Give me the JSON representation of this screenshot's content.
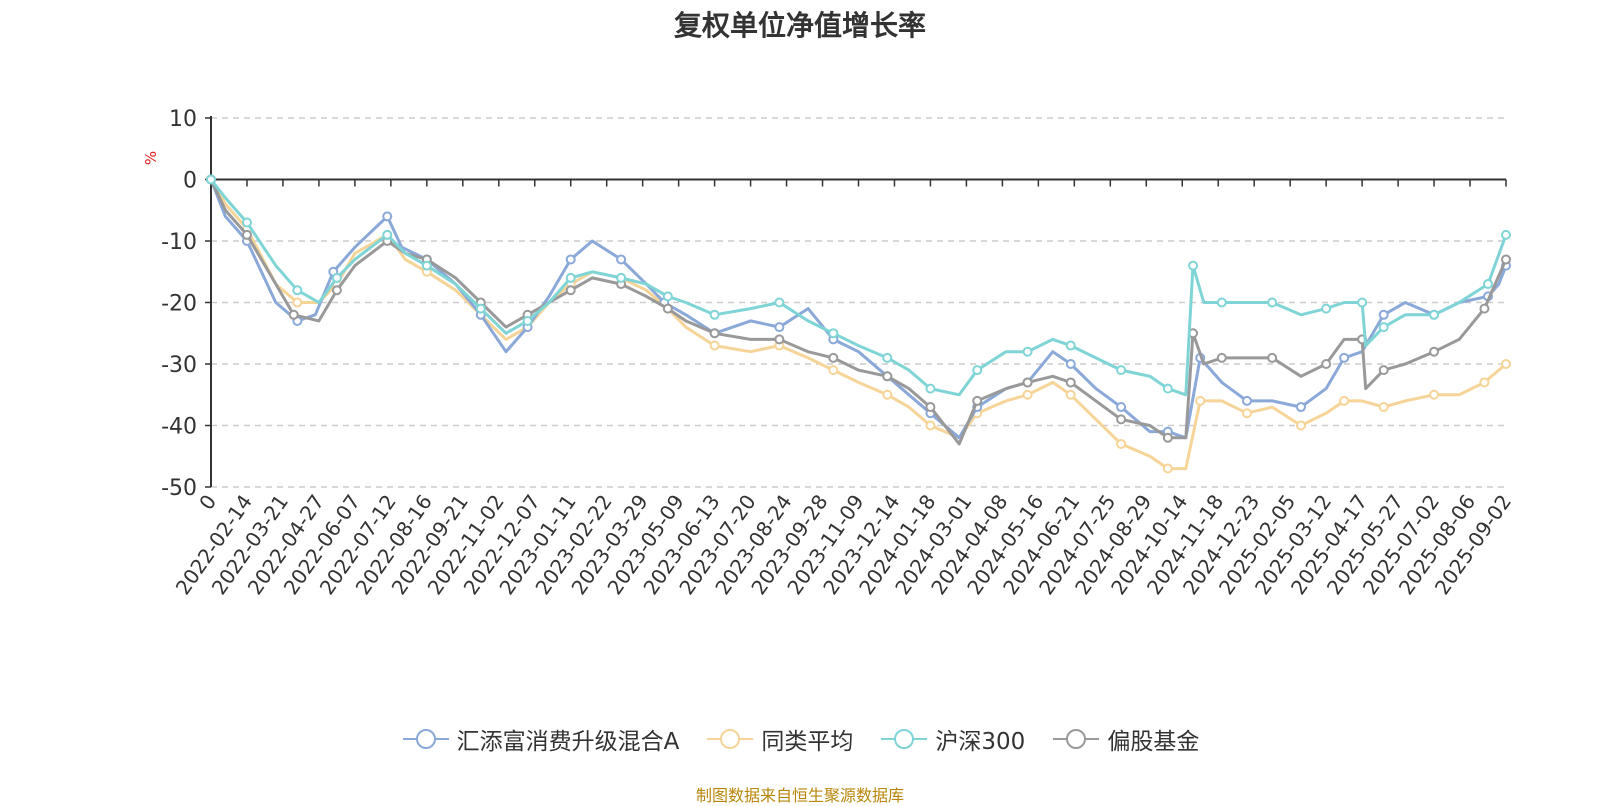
{
  "page": {
    "title": "复权单位净值增长率",
    "source_note": "制图数据来自恒生聚源数据库",
    "source_color": "#b8860b"
  },
  "chart_data": {
    "type": "line",
    "title": "复权单位净值增长率",
    "ylabel": "%",
    "ylim": [
      -50,
      10
    ],
    "yticks": [
      10,
      0,
      -10,
      -20,
      -30,
      -40,
      -50
    ],
    "grid": true,
    "legend_position": "bottom",
    "x_tick_labels": [
      "0",
      "2022-02-14",
      "2022-03-21",
      "2022-04-27",
      "2022-06-07",
      "2022-07-12",
      "2022-08-16",
      "2022-09-21",
      "2022-11-02",
      "2022-12-07",
      "2023-01-11",
      "2023-02-22",
      "2023-03-29",
      "2023-05-09",
      "2023-06-13",
      "2023-07-20",
      "2023-08-24",
      "2023-09-28",
      "2023-11-09",
      "2023-12-14",
      "2024-01-18",
      "2024-03-01",
      "2024-04-08",
      "2024-05-16",
      "2024-06-21",
      "2024-07-25",
      "2024-08-29",
      "2024-10-14",
      "2024-11-18",
      "2024-12-23",
      "2025-02-05",
      "2025-03-12",
      "2025-04-17",
      "2025-05-27",
      "2025-07-02",
      "2025-08-06",
      "2025-09-02"
    ],
    "series": [
      {
        "name": "汇添富消费升级混合A",
        "color": "#8aa8d8",
        "points": [
          [
            0,
            0
          ],
          [
            0.4,
            -6
          ],
          [
            1,
            -10
          ],
          [
            1.8,
            -20
          ],
          [
            2.4,
            -23
          ],
          [
            2.9,
            -22
          ],
          [
            3.4,
            -15
          ],
          [
            4,
            -11
          ],
          [
            4.9,
            -6
          ],
          [
            5.3,
            -11
          ],
          [
            6,
            -13
          ],
          [
            6.8,
            -17
          ],
          [
            7.5,
            -22
          ],
          [
            8.2,
            -28
          ],
          [
            8.8,
            -24
          ],
          [
            9.4,
            -19
          ],
          [
            10,
            -13
          ],
          [
            10.6,
            -10
          ],
          [
            11.4,
            -13
          ],
          [
            12.1,
            -17
          ],
          [
            12.6,
            -20
          ],
          [
            13.2,
            -22
          ],
          [
            14,
            -25
          ],
          [
            15,
            -23
          ],
          [
            15.8,
            -24
          ],
          [
            16.6,
            -21
          ],
          [
            17.3,
            -26
          ],
          [
            18,
            -28
          ],
          [
            18.8,
            -32
          ],
          [
            19.4,
            -35
          ],
          [
            20,
            -38
          ],
          [
            20.8,
            -42
          ],
          [
            21.3,
            -37
          ],
          [
            22.1,
            -34
          ],
          [
            22.7,
            -33
          ],
          [
            23.4,
            -28
          ],
          [
            23.9,
            -30
          ],
          [
            24.6,
            -34
          ],
          [
            25.3,
            -37
          ],
          [
            26.1,
            -41
          ],
          [
            26.6,
            -41
          ],
          [
            27.1,
            -42
          ],
          [
            27.5,
            -29
          ],
          [
            28.1,
            -33
          ],
          [
            28.8,
            -36
          ],
          [
            29.5,
            -36
          ],
          [
            30.3,
            -37
          ],
          [
            31,
            -34
          ],
          [
            31.5,
            -29
          ],
          [
            32,
            -28
          ],
          [
            32.6,
            -22
          ],
          [
            33.2,
            -20
          ],
          [
            34,
            -22
          ],
          [
            34.7,
            -20
          ],
          [
            35.5,
            -19
          ],
          [
            35.8,
            -17
          ],
          [
            36,
            -14
          ]
        ]
      },
      {
        "name": "同类平均",
        "color": "#f6d498",
        "points": [
          [
            0,
            0
          ],
          [
            0.4,
            -4
          ],
          [
            1,
            -8
          ],
          [
            1.8,
            -17
          ],
          [
            2.4,
            -20
          ],
          [
            3,
            -20
          ],
          [
            3.5,
            -17
          ],
          [
            4,
            -12
          ],
          [
            4.9,
            -9
          ],
          [
            5.4,
            -13
          ],
          [
            6,
            -15
          ],
          [
            6.8,
            -18
          ],
          [
            7.5,
            -22
          ],
          [
            8.2,
            -26
          ],
          [
            8.8,
            -24
          ],
          [
            9.4,
            -20
          ],
          [
            10,
            -17
          ],
          [
            10.6,
            -15
          ],
          [
            11.4,
            -16
          ],
          [
            12.1,
            -18
          ],
          [
            12.7,
            -21
          ],
          [
            13.2,
            -24
          ],
          [
            14,
            -27
          ],
          [
            15,
            -28
          ],
          [
            15.8,
            -27
          ],
          [
            16.6,
            -29
          ],
          [
            17.3,
            -31
          ],
          [
            18,
            -33
          ],
          [
            18.8,
            -35
          ],
          [
            19.4,
            -37
          ],
          [
            20,
            -40
          ],
          [
            20.8,
            -42
          ],
          [
            21.3,
            -38
          ],
          [
            22.1,
            -36
          ],
          [
            22.7,
            -35
          ],
          [
            23.4,
            -33
          ],
          [
            23.9,
            -35
          ],
          [
            24.6,
            -39
          ],
          [
            25.3,
            -43
          ],
          [
            26.1,
            -45
          ],
          [
            26.6,
            -47
          ],
          [
            27.1,
            -47
          ],
          [
            27.5,
            -36
          ],
          [
            28.1,
            -36
          ],
          [
            28.8,
            -38
          ],
          [
            29.5,
            -37
          ],
          [
            30.3,
            -40
          ],
          [
            31,
            -38
          ],
          [
            31.5,
            -36
          ],
          [
            32,
            -36
          ],
          [
            32.6,
            -37
          ],
          [
            33.2,
            -36
          ],
          [
            34,
            -35
          ],
          [
            34.7,
            -35
          ],
          [
            35.4,
            -33
          ],
          [
            36,
            -30
          ]
        ]
      },
      {
        "name": "沪深300",
        "color": "#7fd4d6",
        "points": [
          [
            0,
            0
          ],
          [
            0.4,
            -3
          ],
          [
            1,
            -7
          ],
          [
            1.8,
            -14
          ],
          [
            2.4,
            -18
          ],
          [
            3,
            -20
          ],
          [
            3.5,
            -16
          ],
          [
            4,
            -13
          ],
          [
            4.9,
            -9
          ],
          [
            5.4,
            -12
          ],
          [
            6,
            -14
          ],
          [
            6.8,
            -17
          ],
          [
            7.5,
            -21
          ],
          [
            8.2,
            -25
          ],
          [
            8.8,
            -23
          ],
          [
            9.4,
            -20
          ],
          [
            10,
            -16
          ],
          [
            10.6,
            -15
          ],
          [
            11.4,
            -16
          ],
          [
            12.1,
            -17
          ],
          [
            12.7,
            -19
          ],
          [
            13.2,
            -20
          ],
          [
            14,
            -22
          ],
          [
            15,
            -21
          ],
          [
            15.8,
            -20
          ],
          [
            16.6,
            -23
          ],
          [
            17.3,
            -25
          ],
          [
            18,
            -27
          ],
          [
            18.8,
            -29
          ],
          [
            19.4,
            -31
          ],
          [
            20,
            -34
          ],
          [
            20.8,
            -35
          ],
          [
            21.3,
            -31
          ],
          [
            22.1,
            -28
          ],
          [
            22.7,
            -28
          ],
          [
            23.4,
            -26
          ],
          [
            23.9,
            -27
          ],
          [
            24.6,
            -29
          ],
          [
            25.3,
            -31
          ],
          [
            26.1,
            -32
          ],
          [
            26.6,
            -34
          ],
          [
            27.1,
            -35
          ],
          [
            27.3,
            -14
          ],
          [
            27.6,
            -20
          ],
          [
            28.1,
            -20
          ],
          [
            28.8,
            -20
          ],
          [
            29.5,
            -20
          ],
          [
            30.3,
            -22
          ],
          [
            31,
            -21
          ],
          [
            31.5,
            -20
          ],
          [
            32,
            -20
          ],
          [
            32.1,
            -27
          ],
          [
            32.6,
            -24
          ],
          [
            33.2,
            -22
          ],
          [
            34,
            -22
          ],
          [
            34.7,
            -20
          ],
          [
            35.5,
            -17
          ],
          [
            36,
            -9
          ]
        ]
      },
      {
        "name": "偏股基金",
        "color": "#999999",
        "points": [
          [
            0,
            0
          ],
          [
            0.4,
            -5
          ],
          [
            1,
            -9
          ],
          [
            1.8,
            -17
          ],
          [
            2.3,
            -22
          ],
          [
            3,
            -23
          ],
          [
            3.5,
            -18
          ],
          [
            4,
            -14
          ],
          [
            4.9,
            -10
          ],
          [
            5.4,
            -12
          ],
          [
            6,
            -13
          ],
          [
            6.8,
            -16
          ],
          [
            7.5,
            -20
          ],
          [
            8.2,
            -24
          ],
          [
            8.8,
            -22
          ],
          [
            9.4,
            -20
          ],
          [
            10,
            -18
          ],
          [
            10.6,
            -16
          ],
          [
            11.4,
            -17
          ],
          [
            12.1,
            -19
          ],
          [
            12.7,
            -21
          ],
          [
            13.2,
            -23
          ],
          [
            14,
            -25
          ],
          [
            15,
            -26
          ],
          [
            15.8,
            -26
          ],
          [
            16.6,
            -28
          ],
          [
            17.3,
            -29
          ],
          [
            18,
            -31
          ],
          [
            18.8,
            -32
          ],
          [
            19.4,
            -34
          ],
          [
            20,
            -37
          ],
          [
            20.8,
            -43
          ],
          [
            21.3,
            -36
          ],
          [
            22.1,
            -34
          ],
          [
            22.7,
            -33
          ],
          [
            23.4,
            -32
          ],
          [
            23.9,
            -33
          ],
          [
            24.6,
            -36
          ],
          [
            25.3,
            -39
          ],
          [
            26.1,
            -40
          ],
          [
            26.6,
            -42
          ],
          [
            27.1,
            -42
          ],
          [
            27.3,
            -25
          ],
          [
            27.6,
            -30
          ],
          [
            28.1,
            -29
          ],
          [
            28.8,
            -29
          ],
          [
            29.5,
            -29
          ],
          [
            30.3,
            -32
          ],
          [
            31,
            -30
          ],
          [
            31.5,
            -26
          ],
          [
            32,
            -26
          ],
          [
            32.1,
            -34
          ],
          [
            32.6,
            -31
          ],
          [
            33.2,
            -30
          ],
          [
            34,
            -28
          ],
          [
            34.7,
            -26
          ],
          [
            35.4,
            -21
          ],
          [
            36,
            -13
          ]
        ]
      }
    ]
  }
}
